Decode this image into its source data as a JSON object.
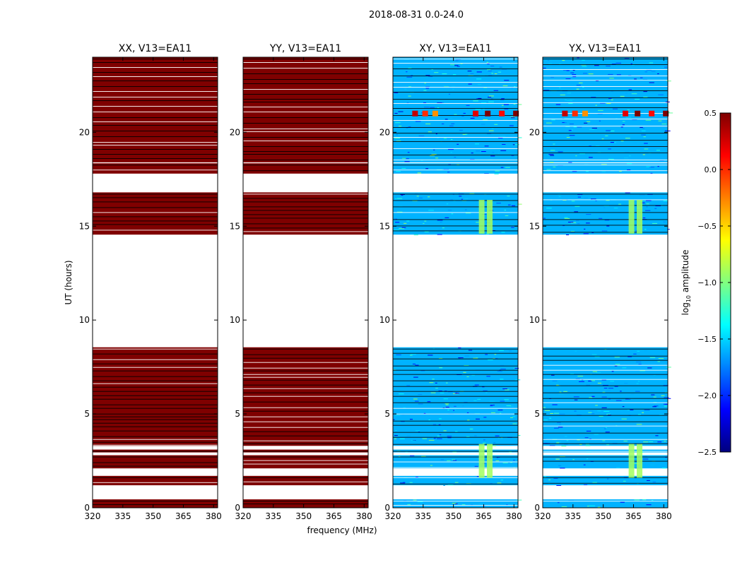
{
  "figure": {
    "suptitle": "2018-08-31 0.0-24.0",
    "xlabel": "frequency (MHz)",
    "ylabel": "UT (hours)"
  },
  "chart_data": {
    "type": "heatmap",
    "title": "2018-08-31 0.0-24.0",
    "xlabel": "frequency (MHz)",
    "ylabel": "UT (hours)",
    "xlim": [
      320,
      382
    ],
    "ylim": [
      0,
      24
    ],
    "xticks": [
      "320",
      "335",
      "350",
      "365",
      "380"
    ],
    "yticks": [
      "0",
      "5",
      "10",
      "15",
      "20"
    ],
    "colorbar": {
      "label": "log10 amplitude",
      "label_main": "log",
      "label_sub": "10",
      "label_rest": " amplitude",
      "range": [
        -2.5,
        0.5
      ],
      "ticks": [
        "0.5",
        "0.0",
        "−0.5",
        "−1.0",
        "−1.5",
        "−2.0",
        "−2.5"
      ],
      "colormap": [
        "#00007f",
        "#0000ff",
        "#0080ff",
        "#00ffff",
        "#80ff80",
        "#ffff00",
        "#ff8000",
        "#ff0000",
        "#7f0000"
      ]
    },
    "panels": [
      {
        "title": "XX, V13=EA11",
        "kind": "parallel",
        "data_bands_hours": [
          [
            0.0,
            0.45
          ],
          [
            1.2,
            1.7
          ],
          [
            2.1,
            2.8
          ],
          [
            2.95,
            3.1
          ],
          [
            3.3,
            8.55
          ],
          [
            14.55,
            16.8
          ],
          [
            17.8,
            18.35
          ],
          [
            18.4,
            24.0
          ]
        ],
        "level_log10": 0.5
      },
      {
        "title": "YY, V13=EA11",
        "kind": "parallel",
        "data_bands_hours": [
          [
            0.0,
            0.45
          ],
          [
            1.2,
            1.7
          ],
          [
            2.1,
            2.8
          ],
          [
            2.95,
            3.1
          ],
          [
            3.3,
            8.55
          ],
          [
            14.55,
            16.8
          ],
          [
            17.8,
            18.35
          ],
          [
            18.4,
            24.0
          ]
        ],
        "level_log10": 0.5
      },
      {
        "title": "XY, V13=EA11",
        "kind": "cross",
        "data_bands_hours": [
          [
            0.0,
            0.45
          ],
          [
            1.2,
            1.7
          ],
          [
            2.1,
            2.8
          ],
          [
            2.95,
            3.1
          ],
          [
            3.3,
            8.55
          ],
          [
            14.55,
            16.8
          ],
          [
            17.8,
            18.35
          ],
          [
            18.4,
            24.0
          ]
        ],
        "level_log10": -1.6
      },
      {
        "title": "YX, V13=EA11",
        "kind": "cross",
        "data_bands_hours": [
          [
            0.0,
            0.45
          ],
          [
            1.2,
            1.7
          ],
          [
            2.1,
            2.8
          ],
          [
            2.95,
            3.1
          ],
          [
            3.3,
            8.55
          ],
          [
            14.55,
            16.8
          ],
          [
            17.8,
            18.35
          ],
          [
            18.4,
            24.0
          ]
        ],
        "level_log10": -1.6
      }
    ]
  },
  "colors": {
    "parallel_fill": "#7f0000",
    "flag_line": "#000000",
    "gap": "#ffffff"
  }
}
